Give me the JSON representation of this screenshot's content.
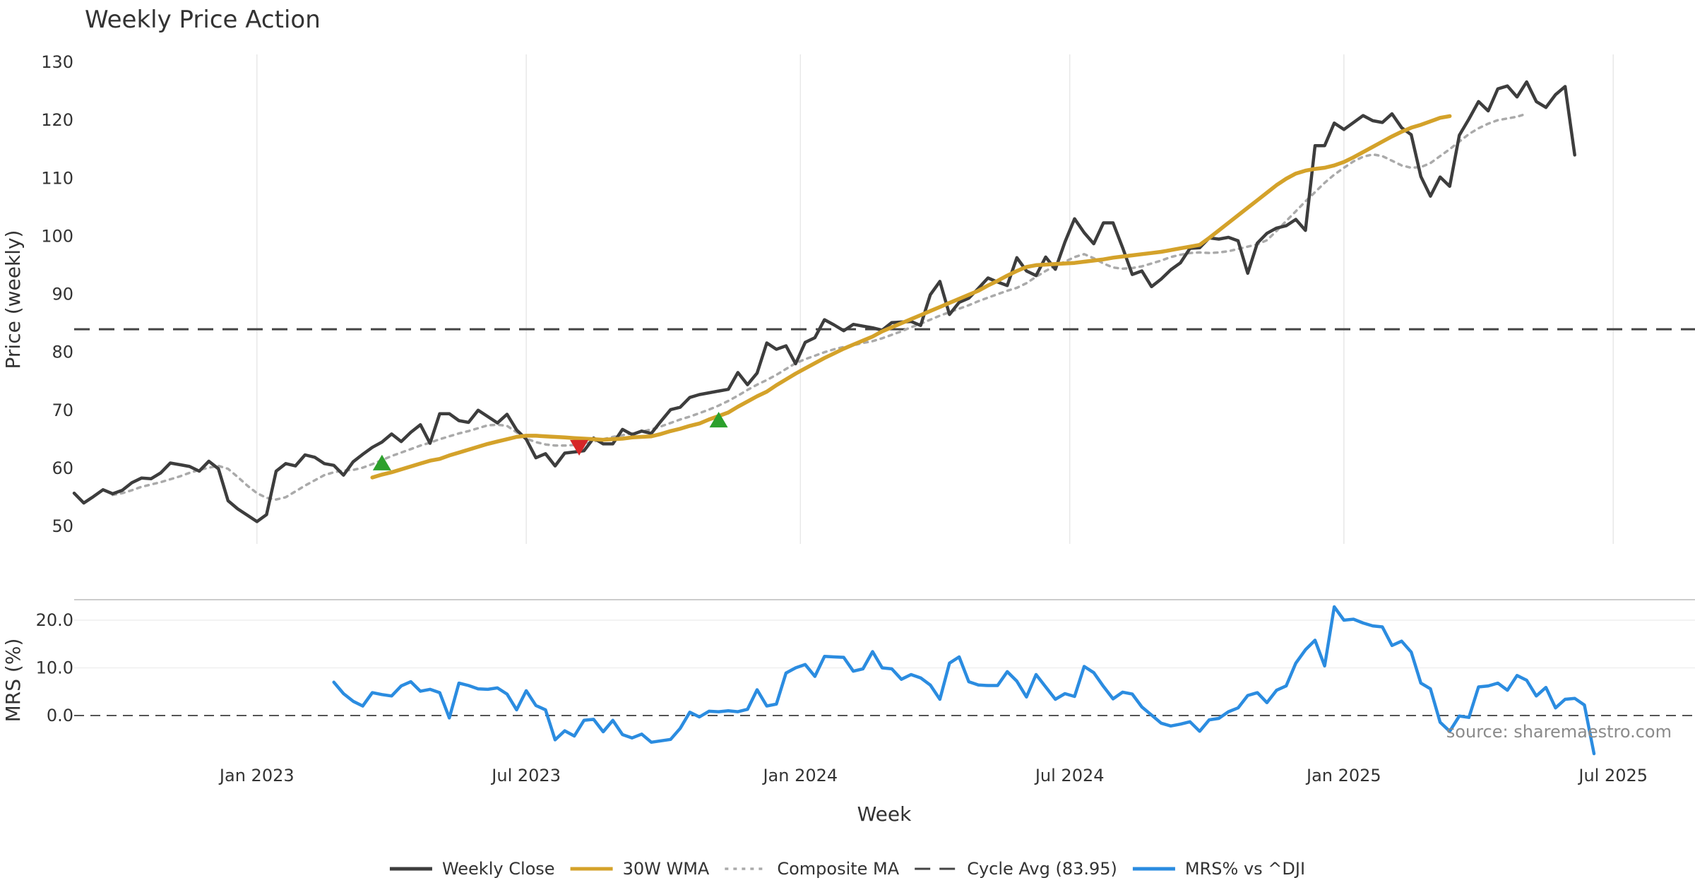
{
  "chart_data": {
    "type": "line",
    "title": "Weekly Price Action",
    "xlabel": "Week",
    "price_panel": {
      "ylabel": "Price (weekly)",
      "ylim": [
        48,
        132
      ],
      "yticks": [
        50,
        60,
        70,
        80,
        90,
        100,
        110,
        120,
        130
      ],
      "cycle_avg": 83.95
    },
    "mrs_panel": {
      "ylabel": "MRS (%)",
      "ylim": [
        -8.5,
        25
      ],
      "yticks": [
        0,
        10,
        20
      ],
      "ytick_labels": [
        "0.0",
        "10.0",
        "20.0"
      ]
    },
    "x_ticks": [
      {
        "label": "Jan 2023",
        "week": 19
      },
      {
        "label": "Jul 2023",
        "week": 47
      },
      {
        "label": "Jan 2024",
        "week": 75.5
      },
      {
        "label": "Jul 2024",
        "week": 103.5
      },
      {
        "label": "Jan 2025",
        "week": 132
      },
      {
        "label": "Jul 2025",
        "week": 160
      }
    ],
    "xlim": [
      0,
      168.5
    ],
    "series": [
      {
        "name": "Weekly Close",
        "color": "#3d3d3d",
        "style": "solid",
        "start": 0,
        "values": [
          55.7,
          54,
          55.1,
          56.3,
          55.6,
          56.2,
          57.5,
          58.3,
          58.2,
          59.2,
          60.9,
          60.6,
          60.3,
          59.5,
          61.2,
          59.9,
          54.4,
          53,
          51.9,
          50.8,
          52,
          59.5,
          60.8,
          60.4,
          62.3,
          61.9,
          60.8,
          60.5,
          58.8,
          61.1,
          62.4,
          63.6,
          64.5,
          65.9,
          64.6,
          66.2,
          67.5,
          64.3,
          69.4,
          69.4,
          68.2,
          67.9,
          70,
          68.9,
          67.8,
          69.3,
          66.6,
          65,
          61.8,
          62.5,
          60.4,
          62.6,
          62.8,
          63,
          65.2,
          64.2,
          64.2,
          66.7,
          65.8,
          66.4,
          66,
          68.1,
          70.1,
          70.5,
          72.2,
          72.7,
          73,
          73.3,
          73.6,
          76.5,
          74.4,
          76.4,
          81.6,
          80.5,
          81.1,
          78,
          81.7,
          82.5,
          85.6,
          84.7,
          83.7,
          84.8,
          84.5,
          84.2,
          83.8,
          85.1,
          85.2,
          85.3,
          84.6,
          89.9,
          92.2,
          86.5,
          88.6,
          89.3,
          91,
          92.8,
          92.1,
          91.5,
          96.3,
          94,
          93.2,
          96.4,
          94.3,
          99,
          103,
          100.6,
          98.7,
          102.3,
          102.3,
          98,
          93.4,
          94,
          91.3,
          92.6,
          94.2,
          95.4,
          97.9,
          98,
          99.7,
          99.5,
          99.8,
          99.2,
          93.6,
          98.8,
          100.5,
          101.4,
          101.8,
          102.9,
          101,
          115.6,
          115.6,
          119.5,
          118.4,
          119.6,
          120.8,
          119.9,
          119.6,
          121.1,
          118.7,
          117.5,
          110.3,
          106.9,
          110.2,
          108.6,
          117.4,
          120.2,
          123.2,
          121.6,
          125.4,
          125.9,
          124,
          126.6,
          123.2,
          122.2,
          124.4,
          125.8,
          114
        ]
      },
      {
        "name": "30W WMA",
        "color": "#d4a22a",
        "style": "solid",
        "start": 31,
        "values": [
          58.4,
          58.9,
          59.3,
          59.8,
          60.3,
          60.8,
          61.3,
          61.6,
          62.2,
          62.7,
          63.2,
          63.7,
          64.2,
          64.6,
          65,
          65.4,
          65.6,
          65.6,
          65.5,
          65.4,
          65.3,
          65.2,
          65.1,
          65,
          64.9,
          65,
          65.1,
          65.3,
          65.4,
          65.5,
          65.9,
          66.4,
          66.8,
          67.3,
          67.7,
          68.4,
          69,
          69.6,
          70.6,
          71.5,
          72.4,
          73.2,
          74.3,
          75.3,
          76.3,
          77.2,
          78.1,
          79,
          79.8,
          80.6,
          81.3,
          82,
          82.7,
          83.6,
          84.3,
          85,
          85.7,
          86.4,
          87.1,
          87.8,
          88.5,
          89.2,
          89.9,
          90.6,
          91.5,
          92.3,
          93.2,
          94,
          94.7,
          95,
          95.1,
          95.2,
          95.3,
          95.4,
          95.6,
          95.8,
          96,
          96.3,
          96.5,
          96.7,
          96.9,
          97.1,
          97.3,
          97.6,
          97.9,
          98.2,
          98.5,
          99.7,
          101,
          102.3,
          103.6,
          104.9,
          106.2,
          107.5,
          108.8,
          109.9,
          110.8,
          111.3,
          111.6,
          111.8,
          112.2,
          112.8,
          113.6,
          114.5,
          115.4,
          116.3,
          117.2,
          118,
          118.7,
          119.2,
          119.8,
          120.4,
          120.7
        ]
      },
      {
        "name": "Composite MA",
        "color": "#aaaaaa",
        "style": "dotted",
        "start": 4,
        "values": [
          55.4,
          55.7,
          56.2,
          56.8,
          57.2,
          57.6,
          58.1,
          58.6,
          59.2,
          59.7,
          60.1,
          60.4,
          59.9,
          58.5,
          57,
          55.7,
          54.9,
          54.6,
          55,
          56,
          57,
          57.9,
          58.8,
          59.3,
          59.6,
          59.7,
          60.1,
          60.7,
          61.4,
          62.1,
          62.7,
          63.3,
          63.9,
          64.4,
          65,
          65.5,
          66,
          66.4,
          66.9,
          67.4,
          67.5,
          67.3,
          66.2,
          65.1,
          64.5,
          64.1,
          63.9,
          63.9,
          64,
          64.2,
          64.6,
          65,
          65.4,
          65.7,
          66,
          66.3,
          66.7,
          67.2,
          67.8,
          68.4,
          68.9,
          69.5,
          70.1,
          70.8,
          71.6,
          72.5,
          73.5,
          74.4,
          75.2,
          76.1,
          77.1,
          78.1,
          78.8,
          79.4,
          80,
          80.5,
          80.9,
          81.2,
          81.6,
          81.9,
          82.4,
          83,
          83.6,
          84.3,
          84.9,
          85.6,
          86.3,
          86.9,
          87.5,
          88.1,
          88.8,
          89.4,
          90,
          90.6,
          91.1,
          91.9,
          93,
          94,
          94.9,
          95.6,
          96.4,
          96.9,
          96.2,
          95.3,
          94.6,
          94.4,
          94.5,
          94.8,
          95.3,
          95.8,
          96.4,
          96.8,
          97.1,
          97.2,
          97.1,
          97.2,
          97.4,
          97.8,
          98.2,
          98.6,
          99.3,
          100.9,
          102.6,
          104.3,
          106,
          107.6,
          109.2,
          110.6,
          111.8,
          112.9,
          113.7,
          114.1,
          113.8,
          113,
          112.2,
          111.8,
          111.9,
          112.6,
          113.8,
          115,
          116.3,
          117.6,
          118.6,
          119.4,
          120,
          120.3,
          120.6,
          121.1
        ]
      },
      {
        "name": "Cycle Avg (83.95)",
        "color": "#444444",
        "style": "dashed",
        "value": 83.95
      },
      {
        "name": "MRS% vs ^DJI",
        "color": "#2b8ce0",
        "style": "solid",
        "panel": "mrs",
        "start": 27,
        "values": [
          7,
          4.6,
          3,
          2,
          4.8,
          4.4,
          4.1,
          6.2,
          7.1,
          5.1,
          5.5,
          4.8,
          -0.5,
          6.8,
          6.3,
          5.6,
          5.5,
          5.8,
          4.5,
          1.2,
          5.2,
          2.1,
          1.2,
          -5.1,
          -3.2,
          -4.3,
          -1,
          -0.8,
          -3.4,
          -1,
          -4,
          -4.7,
          -3.9,
          -5.6,
          -5.3,
          -5,
          -2.7,
          0.7,
          -0.3,
          0.9,
          0.8,
          1,
          0.8,
          1.3,
          5.4,
          2,
          2.4,
          8.9,
          10,
          10.7,
          8.2,
          12.4,
          12.3,
          12.2,
          9.3,
          9.8,
          13.4,
          10,
          9.8,
          7.6,
          8.6,
          7.9,
          6.4,
          3.4,
          11,
          12.3,
          7.1,
          6.4,
          6.3,
          6.3,
          9.2,
          7.2,
          3.9,
          8.6,
          6,
          3.4,
          4.6,
          4,
          10.3,
          9,
          6.1,
          3.5,
          4.9,
          4.5,
          1.8,
          0.1,
          -1.6,
          -2.2,
          -1.8,
          -1.3,
          -3.3,
          -0.9,
          -0.6,
          0.8,
          1.6,
          4.2,
          4.8,
          2.7,
          5.3,
          6.2,
          11,
          13.8,
          15.8,
          10.4,
          22.8,
          20,
          20.2,
          19.4,
          18.8,
          18.6,
          14.7,
          15.6,
          13.3,
          6.8,
          5.6,
          -1.4,
          -3.3,
          -0.1,
          -0.4,
          6,
          6.2,
          6.8,
          5.3,
          8.4,
          7.4,
          4.1,
          5.9,
          1.6,
          3.4,
          3.6,
          2.2,
          -8
        ]
      }
    ],
    "markers": [
      {
        "type": "buy",
        "week": 32,
        "value": 60.9,
        "color": "#2ca02c"
      },
      {
        "type": "sell",
        "week": 52.5,
        "value": 63.6,
        "color": "#d62728"
      },
      {
        "type": "buy",
        "week": 67,
        "value": 68.3,
        "color": "#2ca02c"
      }
    ],
    "legend": {
      "position": "bottom-center",
      "items": [
        "Weekly Close",
        "30W WMA",
        "Composite MA",
        "Cycle Avg (83.95)",
        "MRS% vs ^DJI"
      ]
    },
    "source": "source: sharemaestro.com"
  }
}
